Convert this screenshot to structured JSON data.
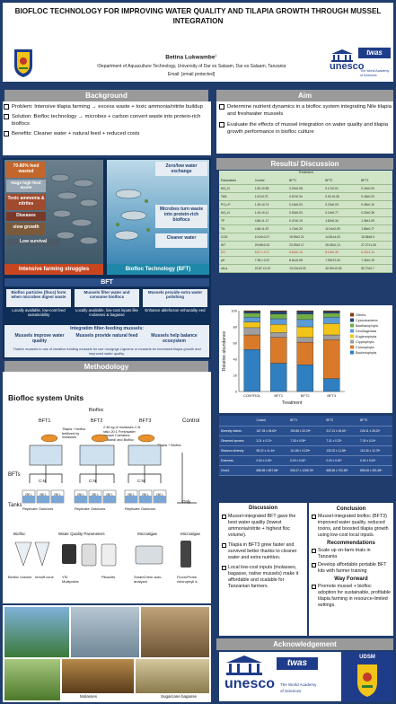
{
  "header": {
    "title": "BIOFLOC TECHNOLOGY FOR IMPROVING WATER QUALITY AND TILAPIA GROWTH THROUGH MUSSEL INTEGRATION",
    "author": "Betina Lukwambe",
    "author_sup": "1",
    "affiliation": "¹Department of Aquaculture Technology, University of Dar es Salaam, Dar es Salaam, Tanzania",
    "email": "Email: [email protected]",
    "logo_twas": "twas",
    "logo_unesco": "unesco",
    "logo_unesco_sub1": "The World Academy",
    "logo_unesco_sub2": "of Sciences"
  },
  "background": {
    "heading": "Background",
    "items": [
      "Problem: Intensive tilapia farming → excess waste + toxic ammonia/nitrite buildup",
      "Solution: Biofloc technology → microbes + carbon convert waste into protein-rich biolfocs",
      "Benefits: Cleaner water + natural feed + reduced costs"
    ],
    "infographic": {
      "left_boxes": [
        "70-80% feed wasted",
        "Toxic ammonia & nitrites",
        "Diseases",
        "slow growth",
        "Low survival"
      ],
      "left_extra": "Huge high feed waste",
      "left_caption": "Intensive farming struggles",
      "right_boxes": [
        "Zero/low water exchange",
        "Microbes turn waste into protein-rich biolfocs",
        "Cleaner water"
      ],
      "right_caption": "Biofloc Technology (BFT)",
      "bft_title": "BFT",
      "bft_cols": [
        {
          "head": "Biofloc particles (flocs) form when microbes digest waste",
          "sub": "Locally available, low-cost feed sustainability"
        },
        {
          "head": "Mussels filter water and consume biolfocs",
          "sub": "Locally available, low-cost inputs like molasses & bagasse"
        },
        {
          "head": "Mussels provide extra water polishing",
          "sub": "Enhance ablefocton enhunality eed"
        }
      ],
      "integ_title": "Integratim filter-feeding mussels:",
      "integ_cols": [
        "Mussels improve water quality",
        "Mussels provide natural feed",
        "Mussels help balance ecosystem"
      ],
      "integ_footer": "Thalive mussels to use of iweative funding mussels for use nocrgnge Ligmens or mussels for increased tilapia growth and improved water quality."
    }
  },
  "methodology": {
    "heading": "Methodology",
    "diagram_title": "Biofloc system Units",
    "biofloc_label": "Biofloc",
    "control_label": "Control",
    "units": [
      "BFT1",
      "BFT2",
      "BFT3"
    ],
    "bfts_label": "BFTs",
    "tanks_label": "Tanks",
    "only_label": "Only",
    "bft1_note": "Tilapia + biofloc fertilized by molasses",
    "bft2_note": "2.36 kg of molasses C:N ratio 20:1 Freshwater mussel Coelatura cridlandi and Biofloc",
    "bft3_note": "Tilapia + Biofloc",
    "tilapia_plus": "Tilapia +",
    "cn_label": "C:N",
    "tank_label": "250 L",
    "replicate_label": "Replicate",
    "outdoors_label": "Outdoors",
    "instruments": [
      {
        "group": "Biofloc",
        "items": [
          "Biofloc Volume",
          "Imhoff cone"
        ]
      },
      {
        "group": "Water Quality Parameters",
        "items": [
          "YSI Multiprobe",
          "Pikachts"
        ]
      },
      {
        "group": "Microalgae",
        "items": [
          "SmartChem auto-analyzer"
        ]
      },
      {
        "group": "Microalgae",
        "items": [
          "FluoroProbe chlorophyll a"
        ]
      }
    ],
    "photo_labels": [
      "Molasses",
      "Sugarcane bagasse"
    ]
  },
  "aim": {
    "heading": "Aim",
    "items": [
      "Determine nutrient dynamics in a biofloc system integrating Nile tilapia and freshwater mussels",
      "Evaluate the effects of mussel integration on water quality and tilapia growth performance in biofloc culture"
    ]
  },
  "results": {
    "heading": "Results/ Discussion",
    "water_table": {
      "group_header": "Treatment",
      "columns": [
        "Parameters",
        "Control",
        "BFT1",
        "BFT2",
        "BFT3"
      ],
      "rows": [
        [
          "NO₃-N",
          "1.83 ±0.55",
          "0.20±0.08",
          "0.17±0.01",
          "0.16±0.03"
        ],
        [
          "TAN",
          "1.67±0.70",
          "0.57±0.34",
          "0.90 ±0.26",
          "0.18±0.23"
        ],
        [
          "PO₄³-P",
          "1.49 ±0.74",
          "0.18±0.03",
          "0.23±0.03",
          "0.35±0.10"
        ],
        [
          "NO₂-N",
          "1.43 ±0.11",
          "0.53±0.03",
          "0.15±0.77",
          "0.20±0.36"
        ],
        [
          "TP",
          "4.86 ±1.17",
          "0.47±0.19",
          "1.82±0.34",
          "1.38±1.09"
        ],
        [
          "TN",
          "4.58 ±1.57",
          "1.74±0.20",
          "10.16±2.09",
          "1.88±0.77"
        ],
        [
          "COD",
          "10.04±2.07",
          "15.59±2.21",
          "14.81±4.03",
          "15.58±5.0"
        ],
        [
          "WT",
          "29.08±0.24",
          "23.93±0.17",
          "25.45±2.13",
          "27.27±1.26"
        ],
        [
          "DO",
          "5.67 ± 0.17",
          "5.60±0.15",
          "6.19±0.30",
          "6.20±1.14"
        ],
        [
          "pH",
          "7.38 ± 0.37",
          "8.61±0.08",
          "7.99±72.00",
          "7.45±0.19"
        ],
        [
          "chl-a",
          "22.87 ±0.13",
          "13.19±13.03",
          "42.09±10.63",
          "52.70±2.7"
        ]
      ],
      "highlight_row": 8
    },
    "bar_chart": {
      "ylabel": "Relative abundance",
      "xlabel": "Treatment"
    },
    "diversity_table": {
      "columns": [
        "",
        "Control",
        "BFT1",
        "BFT2",
        "BFT3"
      ],
      "rows": [
        [
          "Diversity indices",
          "167.25 ± 26.63ᵃ",
          "190.56 ± 32.29ᵃ",
          "217.21 ± 26.61ᵇ",
          "226.11 ± 26.22ᵇ"
        ],
        [
          "Observed species",
          "3.21 ± 0.12ᵃ",
          "7.28 ± 0.09ᵇ",
          "7.31 ± 0.23ᵇ",
          "7.30 ± 0.24ᵇ"
        ],
        [
          "Shannon diversity",
          "98.22 ± 11.44ᵃ",
          "111.85 ± 13.29ᵃ",
          "133.02 ± 11.84ᵇ",
          "113.45 ± 12.75ᵇ"
        ],
        [
          "Evenness",
          "0.00 ± 0.00ᵃ",
          "0.00 ± 0.00ᵇ",
          "0.00 ± 0.00ᵇ",
          "0.00 ± 0.00ᵇ"
        ],
        [
          "Chao1",
          "688.55 ± 897.68ᵃ",
          "935.27 ± 1268.78ᵃ",
          "688.55 ± 702.83ᵇ",
          "855.28 ± 391.65ᵇ"
        ]
      ]
    }
  },
  "discussion": {
    "heading": "Discussion",
    "items": [
      "Mussel-integrated BFT gave the best water quality (lowest ammonia/nitrite + highest floc volume).",
      "Tilapia in BFT3 grew faster and survived better thanks to cleaner water and extra nutrition.",
      "Local low-cost inputs (molasses, bagasse, native mussels) make it affordable and scalable for Tanzanian farmers."
    ]
  },
  "conclusion": {
    "heading": "Conclusion",
    "items": [
      "Mussel-integrated biofloc (BFT3) improved water quality, reduced toxins, and boosted tilapia growth using low-cost local inputs."
    ],
    "rec_heading": "Recommendations",
    "rec_items": [
      "Scale up on-farm trials in Tanzania",
      "Develop affordable portable BFT kits with farmer training"
    ],
    "way_heading": "Way Forward",
    "way_items": [
      "Promote mussel + biofloc adoption for sustainable, profitable tilapia farming in resource-limited settings."
    ]
  },
  "acknowledgement": {
    "heading": "Acknowledgement",
    "logo_twas": "twas",
    "logo_unesco": "unesco",
    "logo_sub1": "The World Academy",
    "logo_sub2": "of Sciences",
    "logo_udsm": "UDSM"
  },
  "chart_data": {
    "type": "bar",
    "categories": [
      "CONTROL",
      "BFT1",
      "BFT2",
      "BFT3"
    ],
    "xlabel": "Treatment",
    "ylabel": "Relative abundance",
    "ylim": [
      0,
      100
    ],
    "series": [
      {
        "name": "Bacteriophyta",
        "color": "#2f7fc1",
        "values": [
          52,
          35,
          33,
          16
        ]
      },
      {
        "name": "Chlorophyta",
        "color": "#d97a2b",
        "values": [
          18,
          32,
          28,
          48
        ]
      },
      {
        "name": "Cryptophyta",
        "color": "#9e9e9e",
        "values": [
          9,
          6,
          6,
          6
        ]
      },
      {
        "name": "Euglenophyta",
        "color": "#f2c318",
        "values": [
          7,
          10,
          13,
          14
        ]
      },
      {
        "name": "Dinoflagellata",
        "color": "#5b9bd5",
        "values": [
          6,
          7,
          9,
          8
        ]
      },
      {
        "name": "Bacillariophyta",
        "color": "#70ad47",
        "values": [
          5,
          6,
          7,
          5
        ]
      },
      {
        "name": "Cyanobacteria",
        "color": "#264478",
        "values": [
          2,
          3,
          3,
          2
        ]
      },
      {
        "name": "Others",
        "color": "#843c0c",
        "values": [
          1,
          1,
          1,
          1
        ]
      }
    ],
    "legend_position": "right"
  }
}
